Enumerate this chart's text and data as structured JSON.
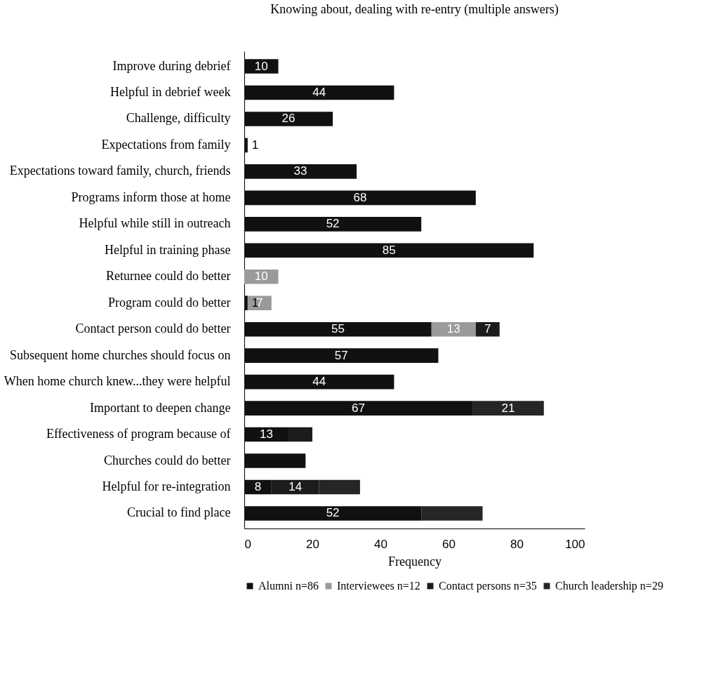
{
  "chart_data": {
    "type": "bar",
    "orientation": "horizontal",
    "stacked": true,
    "title": "Knowing about, dealing with re-entry (multiple answers)",
    "xlabel": "Frequency",
    "categories": [
      "Improve during debrief",
      "Helpful in debrief week",
      "Challenge, difficulty",
      "Expectations from family",
      "Expectations toward family, church, friends",
      "Programs inform those at home ",
      "Helpful while still in outreach",
      "Helpful in training phase",
      "Returnee could do better",
      "Program could do better",
      "Contact person could do better",
      "Subsequent home churches should focus on",
      "When home church knew...they were helpful",
      "Important to deepen change",
      "Effectiveness of program because of",
      "Churches could do better",
      "Helpful for re-integration",
      "Crucial to find place"
    ],
    "series": [
      {
        "name": "Alumni n=86",
        "color": "#111111",
        "values": [
          10,
          44,
          26,
          1,
          33,
          68,
          52,
          85,
          null,
          1,
          55,
          57,
          44,
          67,
          13,
          18,
          8,
          52
        ],
        "value_labels": [
          "10",
          "44",
          "26",
          "1",
          "33",
          "68",
          "52",
          "85",
          null,
          "1",
          "55",
          "57",
          "44",
          "67",
          "13",
          null,
          "8",
          "52"
        ]
      },
      {
        "name": "Interviewees n=12",
        "color": "#9a9a9a",
        "values": [
          null,
          null,
          null,
          null,
          null,
          null,
          null,
          null,
          10,
          7,
          13,
          null,
          null,
          null,
          null,
          null,
          null,
          null
        ],
        "value_labels": [
          null,
          null,
          null,
          null,
          null,
          null,
          null,
          null,
          "10",
          "7",
          "13",
          null,
          null,
          null,
          null,
          null,
          null,
          null
        ]
      },
      {
        "name": "Contact persons n=35",
        "color": "#1c1c1c",
        "values": [
          null,
          null,
          null,
          null,
          null,
          null,
          null,
          null,
          null,
          null,
          7,
          null,
          null,
          null,
          7,
          null,
          14,
          null
        ],
        "value_labels": [
          null,
          null,
          null,
          null,
          null,
          null,
          null,
          null,
          null,
          null,
          "7",
          null,
          null,
          null,
          null,
          null,
          "14",
          null
        ]
      },
      {
        "name": "Church leadership n=29",
        "color": "#262626",
        "values": [
          null,
          null,
          null,
          null,
          null,
          null,
          null,
          null,
          null,
          null,
          null,
          null,
          null,
          21,
          null,
          null,
          12,
          18
        ],
        "value_labels": [
          null,
          null,
          null,
          null,
          null,
          null,
          null,
          null,
          null,
          null,
          null,
          null,
          null,
          "21",
          null,
          null,
          null,
          null
        ]
      }
    ],
    "xlim": [
      0,
      100
    ],
    "xticks": [
      0,
      20,
      40,
      60,
      80,
      100
    ],
    "grid": false,
    "legend": "bottom"
  }
}
